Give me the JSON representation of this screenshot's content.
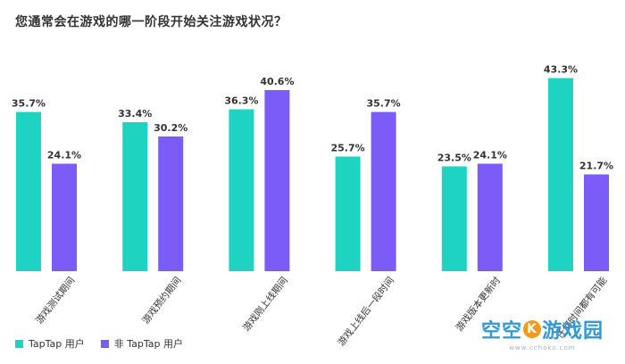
{
  "chart_data": {
    "type": "bar",
    "title": "您通常会在游戏的哪一阶段开始关注游戏状况？",
    "categories": [
      "游戏测试期间",
      "游戏预约期间",
      "游戏刚上线期间",
      "游戏上线后一段时间",
      "游戏版本更新时",
      "任何时间都有可能"
    ],
    "series": [
      {
        "name": "TapTap 用户",
        "color": "#1ed3c1",
        "values": [
          35.7,
          33.4,
          36.3,
          25.7,
          23.5,
          43.3
        ]
      },
      {
        "name": "非 TapTap 用户",
        "color": "#7b5cf6",
        "values": [
          24.1,
          30.2,
          40.6,
          35.7,
          24.1,
          21.7
        ]
      }
    ],
    "value_suffix": "%",
    "ylim": [
      0,
      45
    ],
    "grid": false
  },
  "watermark": {
    "brand_pre": "空空",
    "brand_k": "K",
    "brand_post": "游戏园",
    "url": "www.cchoko.com"
  }
}
